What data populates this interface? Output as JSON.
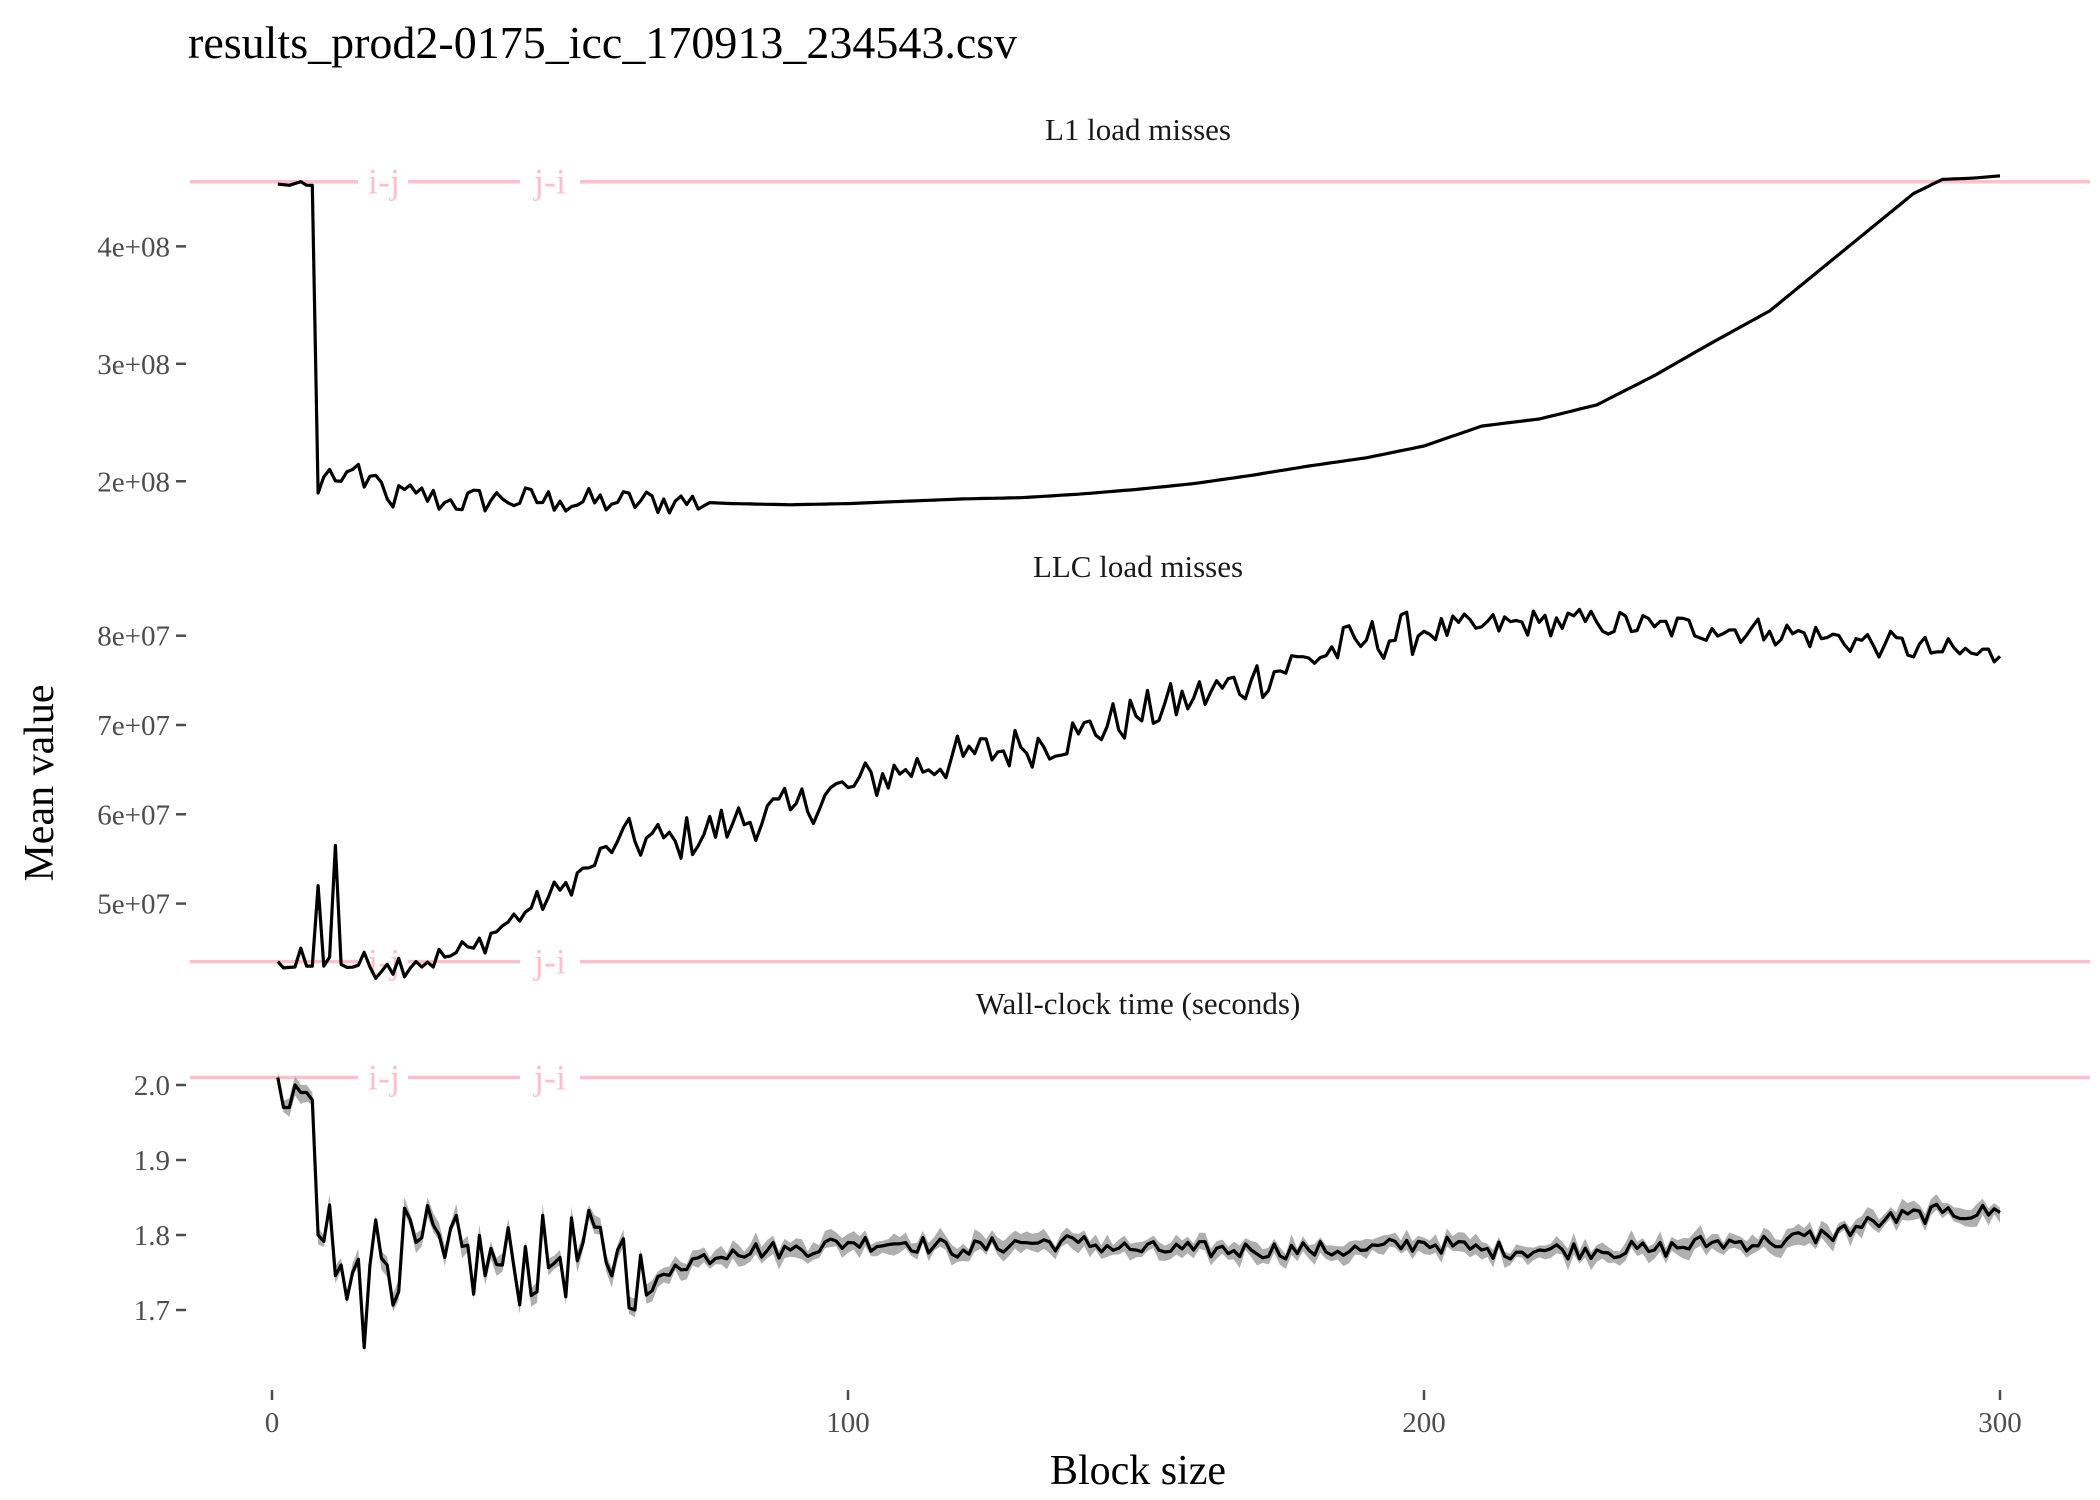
{
  "title": "results_prod2-0175_icc_170913_234543.csv",
  "xlabel": "Block size",
  "ylabel": "Mean value",
  "colors": {
    "reference": "#ffc0cb",
    "line": "#000000",
    "ribbon": "#a6a6a6",
    "tick": "#4d4d4d"
  },
  "chart_data": [
    {
      "type": "line",
      "title": "L1 load misses",
      "ylim": [
        150000000,
        465000000
      ],
      "yticks": [
        200000000,
        300000000,
        400000000
      ],
      "ytick_labels": [
        "2e+08",
        "3e+08",
        "4e+08"
      ],
      "xlim": [
        0,
        300
      ],
      "reference_lines": [
        {
          "y": 455000000,
          "labels": [
            "i-j",
            "j-i"
          ]
        }
      ],
      "series_points": [
        [
          1,
          453000000
        ],
        [
          3,
          452000000
        ],
        [
          5,
          455000000
        ],
        [
          6,
          452000000
        ],
        [
          7,
          452000000
        ],
        [
          8,
          190000000
        ],
        [
          10,
          210000000
        ],
        [
          12,
          200000000
        ],
        [
          14,
          210000000
        ],
        [
          16,
          195000000
        ],
        [
          18,
          205000000
        ],
        [
          20,
          185000000
        ],
        [
          25,
          190000000
        ],
        [
          30,
          182000000
        ],
        [
          40,
          185000000
        ],
        [
          50,
          183000000
        ],
        [
          60,
          182000000
        ],
        [
          70,
          183000000
        ],
        [
          80,
          181000000
        ],
        [
          90,
          180000000
        ],
        [
          100,
          181000000
        ],
        [
          110,
          183000000
        ],
        [
          120,
          185000000
        ],
        [
          130,
          186000000
        ],
        [
          140,
          189000000
        ],
        [
          150,
          193000000
        ],
        [
          160,
          198000000
        ],
        [
          170,
          205000000
        ],
        [
          180,
          213000000
        ],
        [
          190,
          220000000
        ],
        [
          200,
          230000000
        ],
        [
          210,
          247000000
        ],
        [
          220,
          253000000
        ],
        [
          230,
          265000000
        ],
        [
          240,
          290000000
        ],
        [
          250,
          318000000
        ],
        [
          260,
          345000000
        ],
        [
          270,
          385000000
        ],
        [
          280,
          425000000
        ],
        [
          285,
          445000000
        ],
        [
          290,
          457000000
        ],
        [
          295,
          458000000
        ],
        [
          300,
          460000000
        ]
      ],
      "noise_until": 75,
      "noise_amplitude": 12000000
    },
    {
      "type": "line",
      "title": "LLC load misses",
      "ylim": [
        42000000,
        84000000
      ],
      "yticks": [
        50000000,
        60000000,
        70000000,
        80000000
      ],
      "ytick_labels": [
        "5e+07",
        "6e+07",
        "7e+07",
        "8e+07"
      ],
      "xlim": [
        0,
        300
      ],
      "reference_lines": [
        {
          "y": 43500000,
          "labels": [
            "i-j",
            "j-i"
          ]
        }
      ],
      "series_points": [
        [
          1,
          43500000
        ],
        [
          2,
          42800000
        ],
        [
          4,
          42900000
        ],
        [
          5,
          45000000
        ],
        [
          6,
          43000000
        ],
        [
          7,
          43000000
        ],
        [
          8,
          52000000
        ],
        [
          9,
          43000000
        ],
        [
          10,
          44000000
        ],
        [
          11,
          56500000
        ],
        [
          12,
          43200000
        ],
        [
          15,
          43100000
        ],
        [
          20,
          43200000
        ],
        [
          25,
          43500000
        ],
        [
          30,
          44000000
        ],
        [
          35,
          45000000
        ],
        [
          40,
          47500000
        ],
        [
          45,
          49500000
        ],
        [
          50,
          51500000
        ],
        [
          55,
          54000000
        ],
        [
          60,
          57000000
        ],
        [
          70,
          57000000
        ],
        [
          80,
          59000000
        ],
        [
          90,
          60500000
        ],
        [
          100,
          63000000
        ],
        [
          110,
          65000000
        ],
        [
          120,
          66500000
        ],
        [
          130,
          67500000
        ],
        [
          140,
          69000000
        ],
        [
          150,
          71000000
        ],
        [
          160,
          73000000
        ],
        [
          170,
          75000000
        ],
        [
          180,
          77500000
        ],
        [
          190,
          79500000
        ],
        [
          200,
          80500000
        ],
        [
          210,
          81000000
        ],
        [
          220,
          81500000
        ],
        [
          230,
          81500000
        ],
        [
          240,
          81000000
        ],
        [
          250,
          80800000
        ],
        [
          260,
          80500000
        ],
        [
          270,
          79800000
        ],
        [
          280,
          79000000
        ],
        [
          290,
          78200000
        ],
        [
          300,
          77700000
        ]
      ],
      "noise_until": 300,
      "noise_amplitude": 1600000
    },
    {
      "type": "line",
      "title": "Wall-clock time (seconds)",
      "ylim": [
        1.62,
        2.06
      ],
      "yticks": [
        1.7,
        1.8,
        1.9,
        2.0
      ],
      "ytick_labels": [
        "1.7",
        "1.8",
        "1.9",
        "2.0"
      ],
      "xlim": [
        0,
        300
      ],
      "reference_lines": [
        {
          "y": 2.01,
          "labels": [
            "i-j",
            "j-i"
          ]
        }
      ],
      "series_points": [
        [
          1,
          2.01
        ],
        [
          2,
          1.97
        ],
        [
          3,
          1.97
        ],
        [
          4,
          2.0
        ],
        [
          5,
          1.99
        ],
        [
          6,
          1.99
        ],
        [
          7,
          1.98
        ],
        [
          8,
          1.8
        ],
        [
          10,
          1.84
        ],
        [
          12,
          1.76
        ],
        [
          14,
          1.75
        ],
        [
          16,
          1.7
        ],
        [
          18,
          1.82
        ],
        [
          20,
          1.76
        ],
        [
          25,
          1.79
        ],
        [
          30,
          1.77
        ],
        [
          40,
          1.76
        ],
        [
          50,
          1.77
        ],
        [
          60,
          1.78
        ],
        [
          65,
          1.72
        ],
        [
          70,
          1.76
        ],
        [
          80,
          1.78
        ],
        [
          90,
          1.78
        ],
        [
          100,
          1.79
        ],
        [
          110,
          1.79
        ],
        [
          120,
          1.78
        ],
        [
          130,
          1.79
        ],
        [
          140,
          1.79
        ],
        [
          150,
          1.78
        ],
        [
          160,
          1.78
        ],
        [
          170,
          1.78
        ],
        [
          180,
          1.78
        ],
        [
          190,
          1.78
        ],
        [
          200,
          1.79
        ],
        [
          210,
          1.78
        ],
        [
          220,
          1.78
        ],
        [
          230,
          1.78
        ],
        [
          240,
          1.78
        ],
        [
          250,
          1.79
        ],
        [
          260,
          1.79
        ],
        [
          270,
          1.8
        ],
        [
          280,
          1.82
        ],
        [
          290,
          1.83
        ],
        [
          300,
          1.83
        ]
      ],
      "noise_until": 300,
      "noise_amplitude": 0.012,
      "spikes": [
        [
          16,
          1.65
        ],
        [
          63,
          1.7
        ]
      ]
    }
  ],
  "x_axis": {
    "ticks": [
      0,
      100,
      200,
      300
    ],
    "tick_labels": [
      "0",
      "100",
      "200",
      "300"
    ]
  }
}
